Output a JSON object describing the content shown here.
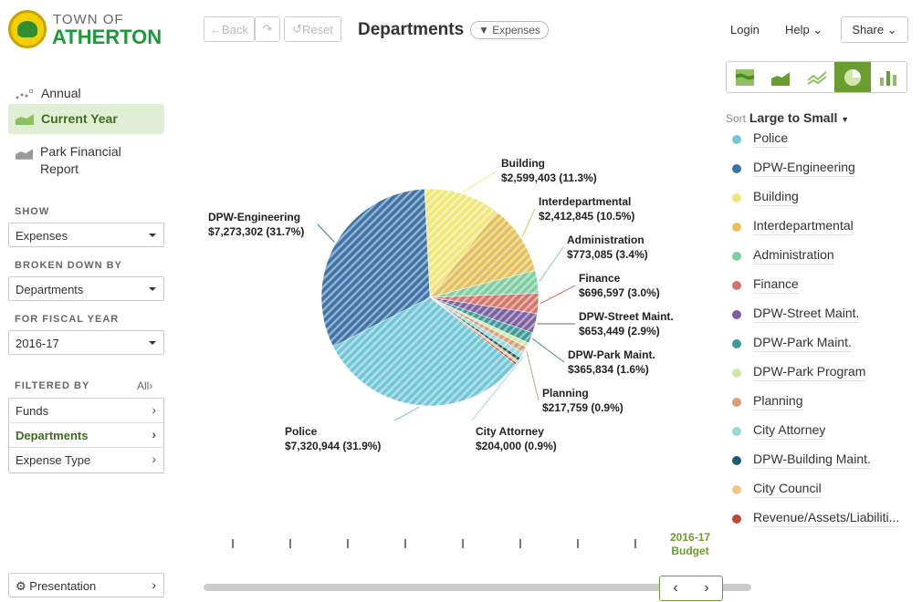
{
  "brand": {
    "line1": "TOWN OF",
    "line2": "ATHERTON"
  },
  "nav": [
    {
      "label": "Annual"
    },
    {
      "label": "Current Year",
      "active": true
    },
    {
      "label": "Park Financial Report"
    }
  ],
  "show": {
    "label": "SHOW",
    "value": "Expenses"
  },
  "broken_down_by": {
    "label": "BROKEN DOWN BY",
    "value": "Departments"
  },
  "fiscal_year": {
    "label": "FOR FISCAL YEAR",
    "value": "2016-17"
  },
  "filtered_by": {
    "label": "FILTERED BY",
    "all": "All",
    "items": [
      "Funds",
      "Departments",
      "Expense Type"
    ]
  },
  "presentation": "Presentation",
  "toolbar": {
    "back": "Back",
    "reset": "Reset"
  },
  "header": {
    "title": "Departments",
    "filter_pill": "Expenses",
    "login": "Login",
    "help": "Help",
    "share": "Share"
  },
  "view_tabs": [
    {
      "icon": "stacked-area-icon"
    },
    {
      "icon": "area-icon"
    },
    {
      "icon": "line-icon"
    },
    {
      "icon": "pie-icon",
      "active": true
    },
    {
      "icon": "bar-icon"
    }
  ],
  "sort": {
    "label": "Sort",
    "value": "Large to Small"
  },
  "accent": "#6a9c2f",
  "timeline": {
    "label1": "2016-17",
    "label2": "Budget"
  },
  "chart_data": {
    "type": "pie",
    "slices": [
      {
        "name": "Police",
        "amount": "$7,320,944",
        "pct": 31.9,
        "pct_label": "(31.9%)",
        "color": "#72c7d6"
      },
      {
        "name": "DPW-Engineering",
        "amount": "$7,273,302",
        "pct": 31.7,
        "pct_label": "(31.7%)",
        "color": "#3d73a6"
      },
      {
        "name": "Building",
        "amount": "$2,599,403",
        "pct": 11.3,
        "pct_label": "(11.3%)",
        "color": "#efe679"
      },
      {
        "name": "Interdepartmental",
        "amount": "$2,412,845",
        "pct": 10.5,
        "pct_label": "(10.5%)",
        "color": "#e3c15a"
      },
      {
        "name": "Administration",
        "amount": "$773,085",
        "pct": 3.4,
        "pct_label": "(3.4%)",
        "color": "#80cda2"
      },
      {
        "name": "Finance",
        "amount": "$696,597",
        "pct": 3.0,
        "pct_label": "(3.0%)",
        "color": "#d2756a"
      },
      {
        "name": "DPW-Street Maint.",
        "amount": "$653,449",
        "pct": 2.9,
        "pct_label": "(2.9%)",
        "color": "#7a5e9f"
      },
      {
        "name": "DPW-Park Maint.",
        "amount": "$365,834",
        "pct": 1.6,
        "pct_label": "(1.6%)",
        "color": "#3e9898"
      },
      {
        "name": "DPW-Park Program",
        "pct": 0.7,
        "color": "#cfe8a9"
      },
      {
        "name": "Planning",
        "amount": "$217,759",
        "pct": 0.9,
        "pct_label": "(0.9%)",
        "color": "#d7a07b"
      },
      {
        "name": "City Attorney",
        "amount": "$204,000",
        "pct": 0.9,
        "pct_label": "(0.9%)",
        "color": "#9ad7d7"
      },
      {
        "name": "DPW-Building Maint.",
        "pct": 0.5,
        "color": "#1f5a70"
      },
      {
        "name": "City Council",
        "pct": 0.4,
        "color": "#f0c887"
      },
      {
        "name": "Revenue/Assets/Liabiliti...",
        "pct": 0.3,
        "color": "#c0463c"
      }
    ]
  }
}
